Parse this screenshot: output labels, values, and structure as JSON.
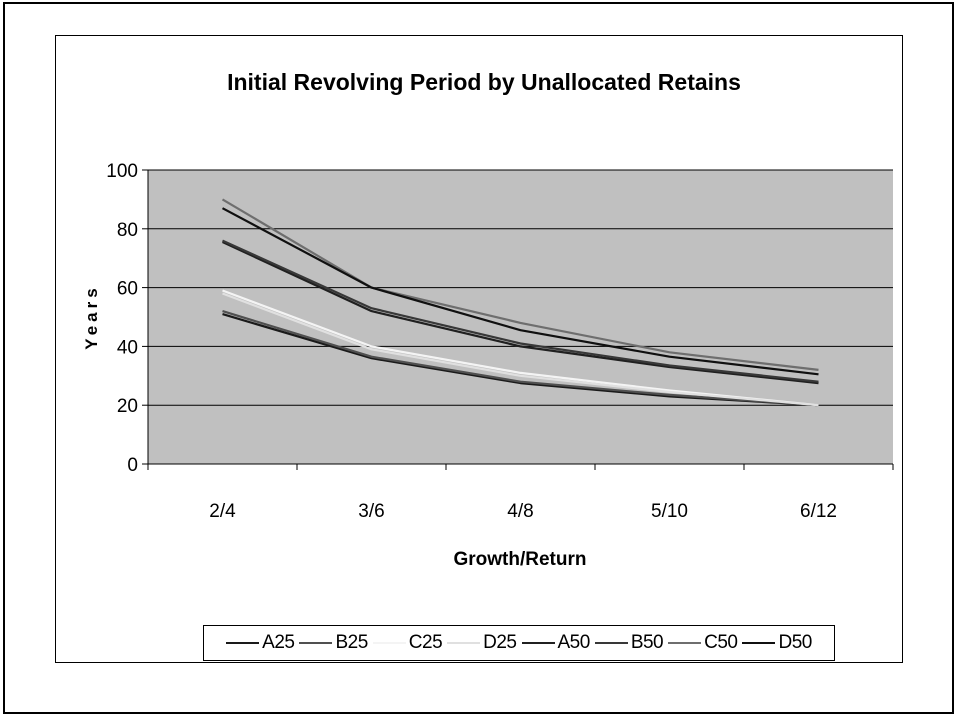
{
  "chart_data": {
    "type": "line",
    "title": "Initial Revolving Period by Unallocated Retains",
    "xlabel": "Growth/Return",
    "ylabel": "Years",
    "categories": [
      "2/4",
      "3/6",
      "4/8",
      "5/10",
      "6/12"
    ],
    "ylim": [
      0,
      100
    ],
    "yticks": [
      0,
      20,
      40,
      60,
      80,
      100
    ],
    "grid": true,
    "plot_background": "#c0c0c0",
    "legend_position": "bottom",
    "series": [
      {
        "name": "A25",
        "color": "#1a1a1a",
        "values": [
          51,
          36,
          27.5,
          23,
          20
        ]
      },
      {
        "name": "B25",
        "color": "#505050",
        "values": [
          52,
          36.5,
          28,
          23.5,
          20
        ]
      },
      {
        "name": "C25",
        "color": "#f4f4f4",
        "values": [
          59,
          40,
          31,
          25,
          20
        ]
      },
      {
        "name": "D25",
        "color": "#e0e0e0",
        "values": [
          58,
          39,
          30,
          24.5,
          20
        ]
      },
      {
        "name": "A50",
        "color": "#202020",
        "values": [
          75.5,
          52,
          40,
          33,
          27.5
        ]
      },
      {
        "name": "B50",
        "color": "#383838",
        "values": [
          76,
          53,
          41,
          33.5,
          28
        ]
      },
      {
        "name": "C50",
        "color": "#6e6e6e",
        "values": [
          90,
          60,
          48,
          38,
          32
        ]
      },
      {
        "name": "D50",
        "color": "#101010",
        "values": [
          87,
          60,
          45.5,
          36.5,
          30.5
        ]
      }
    ]
  }
}
